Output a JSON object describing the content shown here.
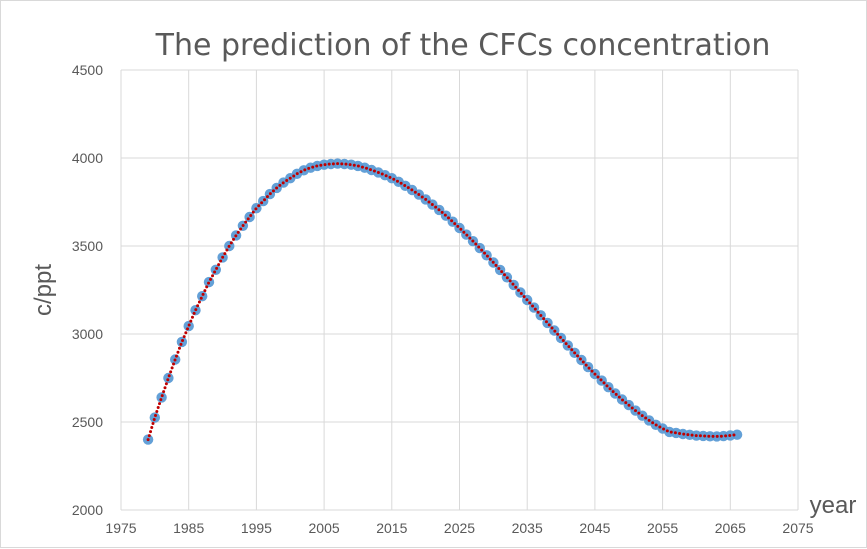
{
  "chart_data": {
    "type": "scatter",
    "title": "The prediction of the CFCs concentration",
    "xlabel": "year",
    "ylabel": "c/ppt",
    "xlim": [
      1975,
      2075
    ],
    "ylim": [
      2000,
      4500
    ],
    "xticks": [
      1975,
      1985,
      1995,
      2005,
      2015,
      2025,
      2035,
      2045,
      2055,
      2065,
      2075
    ],
    "yticks": [
      2000,
      2500,
      3000,
      3500,
      4000,
      4500
    ],
    "grid": true,
    "legend": "none",
    "colors": {
      "points": "#5b9bd5",
      "trend": "#c00000",
      "grid": "#d9d9d9",
      "text": "#595959"
    },
    "series": [
      {
        "marker": "circle",
        "x": [
          1979,
          1980,
          1981,
          1982,
          1983,
          1984,
          1985,
          1986,
          1987,
          1988,
          1989,
          1990,
          1991,
          1992,
          1993,
          1994,
          1995,
          1996,
          1997,
          1998,
          1999,
          2000,
          2001,
          2002,
          2003,
          2004,
          2005,
          2006,
          2007,
          2008,
          2009,
          2010,
          2011,
          2012,
          2013,
          2014,
          2015,
          2016,
          2017,
          2018,
          2019,
          2020,
          2021,
          2022,
          2023,
          2024,
          2025,
          2026,
          2027,
          2028,
          2029,
          2030,
          2031,
          2032,
          2033,
          2034,
          2035,
          2036,
          2037,
          2038,
          2039,
          2040,
          2041,
          2042,
          2043,
          2044,
          2045,
          2046,
          2047,
          2048,
          2049,
          2050,
          2051,
          2052,
          2053,
          2054,
          2055,
          2056,
          2057,
          2058,
          2059,
          2060,
          2061,
          2062,
          2063,
          2064,
          2065,
          2066
        ],
        "y": [
          2400,
          2525,
          2640,
          2750,
          2855,
          2955,
          3045,
          3135,
          3215,
          3295,
          3365,
          3435,
          3500,
          3560,
          3615,
          3665,
          3715,
          3755,
          3795,
          3830,
          3860,
          3885,
          3910,
          3930,
          3945,
          3955,
          3962,
          3966,
          3968,
          3966,
          3962,
          3955,
          3945,
          3932,
          3918,
          3902,
          3885,
          3865,
          3842,
          3818,
          3792,
          3765,
          3735,
          3705,
          3672,
          3638,
          3602,
          3565,
          3527,
          3488,
          3447,
          3406,
          3364,
          3322,
          3279,
          3236,
          3193,
          3150,
          3106,
          3063,
          3020,
          2977,
          2935,
          2893,
          2852,
          2812,
          2773,
          2735,
          2698,
          2662,
          2628,
          2596,
          2565,
          2536,
          2509,
          2484,
          2463,
          2444,
          2438,
          2432,
          2427,
          2423,
          2421,
          2419,
          2418,
          2420,
          2424,
          2428
        ]
      }
    ]
  }
}
